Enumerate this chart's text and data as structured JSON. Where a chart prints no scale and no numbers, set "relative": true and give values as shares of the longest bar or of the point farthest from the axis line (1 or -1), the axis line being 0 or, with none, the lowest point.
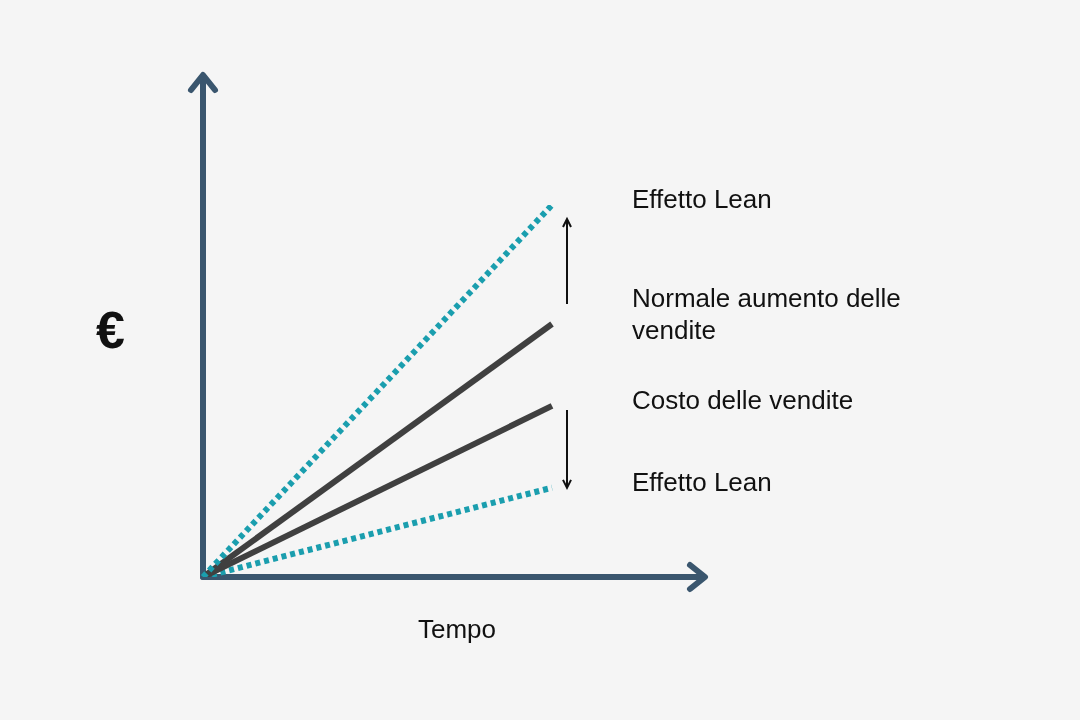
{
  "chart_data": {
    "type": "line",
    "relative": true,
    "xlabel": "Tempo",
    "ylabel": "€",
    "categories": [
      null,
      null
    ],
    "legend": false,
    "marker": "none",
    "series": [
      {
        "name": "Effetto Lean",
        "color": "#1a9eae",
        "values": [
          0,
          1
        ],
        "line_style": "dotted"
      },
      {
        "name": "Normale aumento delle vendite",
        "color": "#404040",
        "values": [
          0,
          0.68
        ],
        "line_style": "solid"
      },
      {
        "name": "Costo delle vendite",
        "color": "#404040",
        "values": [
          0,
          0.46
        ],
        "line_style": "solid"
      },
      {
        "name": "Effetto Lean",
        "color": "#1a9eae",
        "values": [
          0,
          0.24
        ],
        "line_style": "dotted"
      }
    ]
  }
}
